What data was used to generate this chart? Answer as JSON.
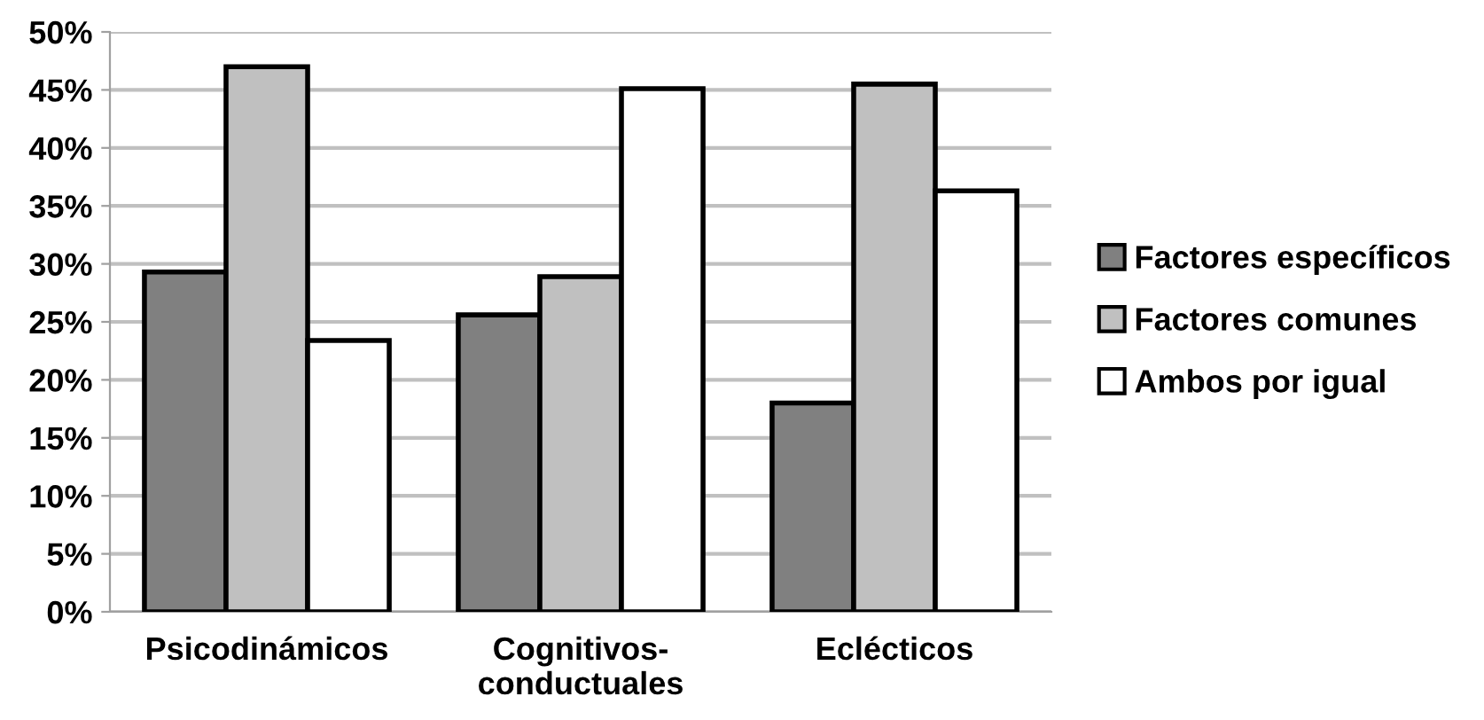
{
  "chart_data": {
    "type": "bar",
    "categories": [
      "Psicodinámicos",
      "Cognitivos-\nconductuales",
      "Eclécticos"
    ],
    "series": [
      {
        "name": "Factores específicos",
        "color": "#808080",
        "values": [
          29.3,
          25.6,
          18.0
        ]
      },
      {
        "name": "Factores comunes",
        "color": "#c0c0c0",
        "values": [
          47.0,
          28.9,
          45.5
        ]
      },
      {
        "name": "Ambos por igual",
        "color": "#ffffff",
        "values": [
          23.4,
          45.1,
          36.3
        ]
      }
    ],
    "ylim": [
      0,
      50
    ],
    "yticks": [
      {
        "value": 0,
        "label": "0%"
      },
      {
        "value": 5,
        "label": "5%"
      },
      {
        "value": 10,
        "label": "10%"
      },
      {
        "value": 15,
        "label": "15%"
      },
      {
        "value": 20,
        "label": "20%"
      },
      {
        "value": 25,
        "label": "25%"
      },
      {
        "value": 30,
        "label": "30%"
      },
      {
        "value": 35,
        "label": "35%"
      },
      {
        "value": 40,
        "label": "40%"
      },
      {
        "value": 45,
        "label": "45%"
      },
      {
        "value": 50,
        "label": "50%"
      }
    ],
    "grid": "y",
    "legend": "right"
  }
}
